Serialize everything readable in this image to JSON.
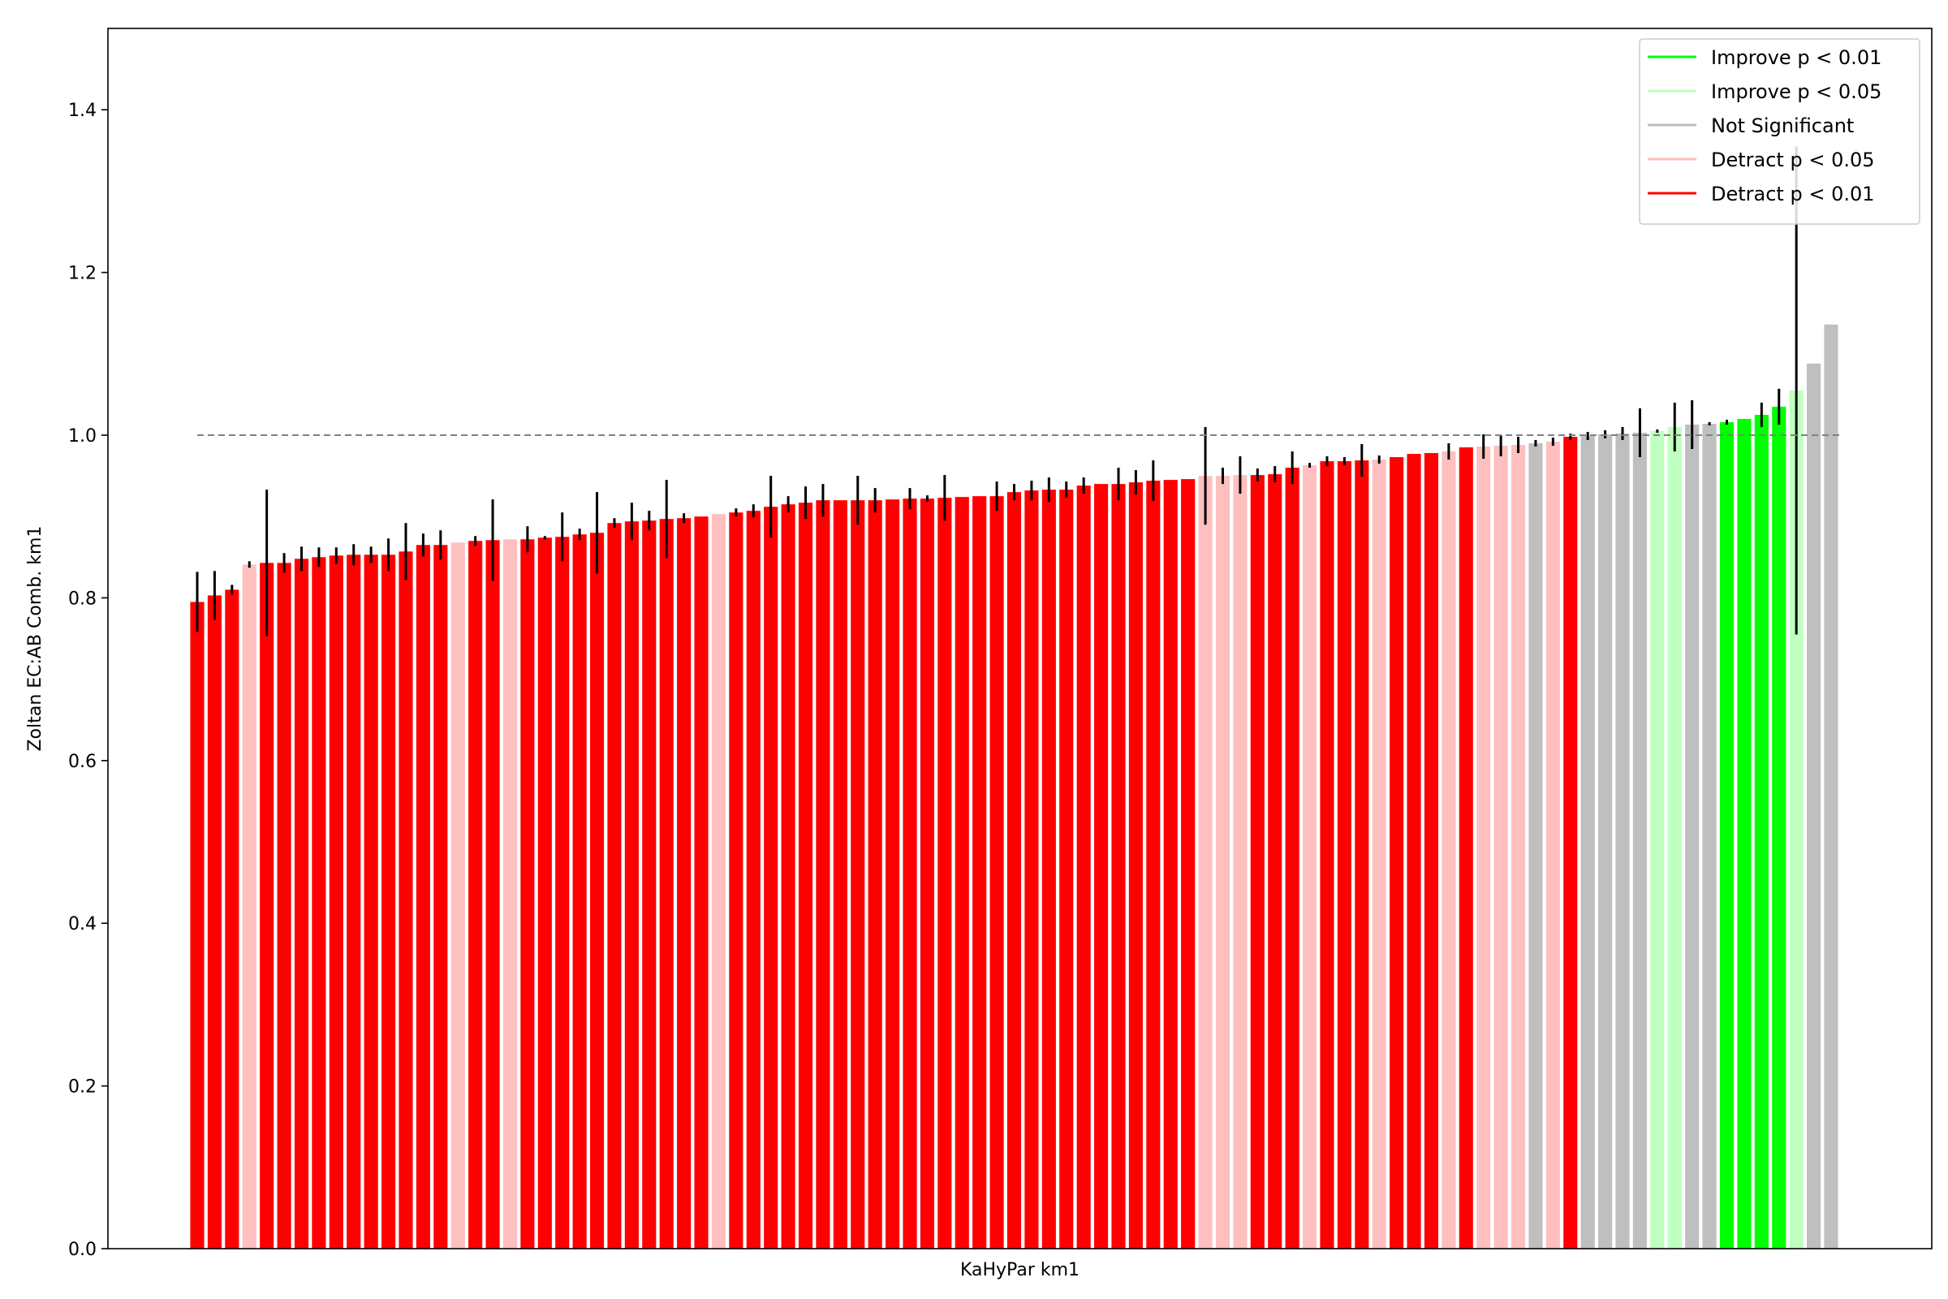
{
  "chart_data": {
    "type": "bar",
    "title": "",
    "xlabel": "KaHyPar km1",
    "ylabel": "Zoltan EC:AB Comb. km1",
    "ylim": [
      0,
      1.5
    ],
    "yticks": [
      "0.0",
      "0.2",
      "0.4",
      "0.6",
      "0.8",
      "1.0",
      "1.2",
      "1.4"
    ],
    "reference_line": 1.0,
    "grid": false,
    "legend_position": "top-right",
    "legend": [
      {
        "label": "Improve p < 0.01",
        "color": "#00ff00"
      },
      {
        "label": "Improve p < 0.05",
        "color": "#bfffbf"
      },
      {
        "label": "Not Significant",
        "color": "#bfbfbf"
      },
      {
        "label": "Detract p < 0.05",
        "color": "#ffbfbf"
      },
      {
        "label": "Detract p < 0.01",
        "color": "#ff0000"
      }
    ],
    "significance_codes": {
      "I1": "#00ff00",
      "I5": "#bfffbf",
      "NS": "#bfbfbf",
      "D5": "#ffbfbf",
      "D1": "#ff0000"
    },
    "values": [
      0.795,
      0.803,
      0.81,
      0.841,
      0.843,
      0.843,
      0.848,
      0.85,
      0.852,
      0.853,
      0.853,
      0.853,
      0.857,
      0.865,
      0.865,
      0.868,
      0.87,
      0.871,
      0.872,
      0.872,
      0.874,
      0.875,
      0.878,
      0.88,
      0.892,
      0.894,
      0.895,
      0.897,
      0.898,
      0.9,
      0.903,
      0.905,
      0.907,
      0.912,
      0.915,
      0.917,
      0.92,
      0.92,
      0.92,
      0.92,
      0.921,
      0.922,
      0.922,
      0.923,
      0.924,
      0.925,
      0.925,
      0.93,
      0.932,
      0.933,
      0.933,
      0.938,
      0.94,
      0.94,
      0.942,
      0.944,
      0.945,
      0.946,
      0.95,
      0.95,
      0.951,
      0.951,
      0.952,
      0.96,
      0.963,
      0.968,
      0.968,
      0.969,
      0.97,
      0.973,
      0.977,
      0.978,
      0.98,
      0.985,
      0.986,
      0.987,
      0.988,
      0.99,
      0.992,
      0.998,
      0.999,
      1.001,
      1.002,
      1.003,
      1.005,
      1.01,
      1.013,
      1.014,
      1.016,
      1.02,
      1.025,
      1.035,
      1.055,
      1.088,
      1.136
    ],
    "errors": [
      0.037,
      0.03,
      0.006,
      0.004,
      0.09,
      0.012,
      0.015,
      0.012,
      0.01,
      0.013,
      0.01,
      0.02,
      0.035,
      0.014,
      0.018,
      0.0,
      0.006,
      0.05,
      0.0,
      0.016,
      0.002,
      0.03,
      0.007,
      0.05,
      0.006,
      0.023,
      0.012,
      0.048,
      0.006,
      0.0,
      0.0,
      0.005,
      0.008,
      0.038,
      0.01,
      0.02,
      0.02,
      0.0,
      0.03,
      0.015,
      0.0,
      0.013,
      0.004,
      0.028,
      0.0,
      0.0,
      0.018,
      0.01,
      0.012,
      0.015,
      0.01,
      0.01,
      0.0,
      0.02,
      0.015,
      0.025,
      0.0,
      0.0,
      0.06,
      0.01,
      0.023,
      0.008,
      0.01,
      0.02,
      0.003,
      0.006,
      0.005,
      0.02,
      0.005,
      0.0,
      0.0,
      0.0,
      0.01,
      0.0,
      0.015,
      0.013,
      0.01,
      0.004,
      0.005,
      0.004,
      0.005,
      0.005,
      0.008,
      0.03,
      0.002,
      0.03,
      0.03,
      0.002,
      0.003,
      0.0,
      0.015,
      0.022,
      0.3,
      0.0,
      0.0
    ],
    "significance": [
      "D1",
      "D1",
      "D1",
      "D5",
      "D1",
      "D1",
      "D1",
      "D1",
      "D1",
      "D1",
      "D1",
      "D1",
      "D1",
      "D1",
      "D1",
      "D5",
      "D1",
      "D1",
      "D5",
      "D1",
      "D1",
      "D1",
      "D1",
      "D1",
      "D1",
      "D1",
      "D1",
      "D1",
      "D1",
      "D1",
      "D5",
      "D1",
      "D1",
      "D1",
      "D1",
      "D1",
      "D1",
      "D1",
      "D1",
      "D1",
      "D1",
      "D1",
      "D1",
      "D1",
      "D1",
      "D1",
      "D1",
      "D1",
      "D1",
      "D1",
      "D1",
      "D1",
      "D1",
      "D1",
      "D1",
      "D1",
      "D1",
      "D1",
      "D5",
      "D5",
      "D5",
      "D1",
      "D1",
      "D1",
      "D5",
      "D1",
      "D1",
      "D1",
      "D5",
      "D1",
      "D1",
      "D1",
      "D5",
      "D1",
      "D5",
      "D5",
      "D5",
      "NS",
      "D5",
      "D1",
      "NS",
      "NS",
      "NS",
      "NS",
      "I5",
      "I5",
      "NS",
      "NS",
      "I1",
      "I1",
      "I1",
      "I1",
      "I5",
      "NS",
      "NS"
    ]
  }
}
